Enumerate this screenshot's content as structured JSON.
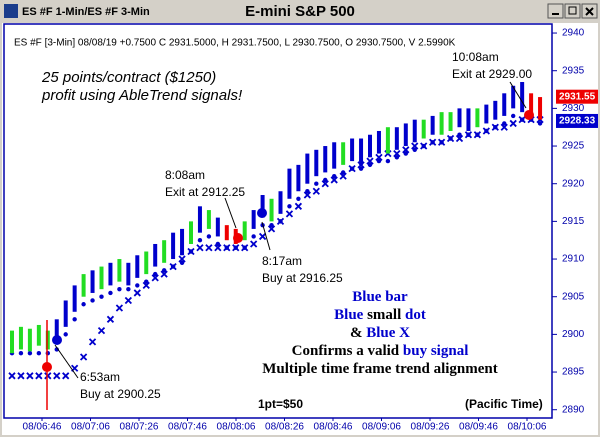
{
  "window": {
    "tab": "ES #F 1-Min/ES #F 3-Min",
    "title": "E-mini S&P 500"
  },
  "chart_data": {
    "type": "bar",
    "info": "ES #F [3-Min] 08/08/19 +0.7500 C 2931.5000, H 2931.7500, L 2930.7500, O 2930.7500, V 2.5990K",
    "categories": [
      "08/06:46",
      "08/07:06",
      "08/07:26",
      "08/07:46",
      "08/08:06",
      "08/08:26",
      "08/08:46",
      "08/09:06",
      "08/09:26",
      "08/09:46",
      "08/10:06"
    ],
    "ylim": [
      2888.9,
      2941.2
    ],
    "yticks": [
      2890,
      2895,
      2900,
      2905,
      2910,
      2915,
      2920,
      2925,
      2930,
      2935,
      2940
    ],
    "bars": {
      "high": [
        2900.5,
        2901,
        2900.75,
        2901.25,
        2900.5,
        2902,
        2904.5,
        2906.5,
        2908,
        2908.5,
        2909,
        2909.5,
        2910,
        2909.5,
        2910.5,
        2911,
        2912,
        2912.5,
        2913.5,
        2914,
        2915,
        2917,
        2916.5,
        2915.5,
        2914.5,
        2914,
        2915,
        2916.5,
        2918.5,
        2918,
        2919,
        2922,
        2922.5,
        2924,
        2924.5,
        2925,
        2925.5,
        2925.5,
        2926,
        2926,
        2926.5,
        2927,
        2927.5,
        2927.5,
        2928,
        2928.5,
        2928.5,
        2929,
        2929.5,
        2929.5,
        2930,
        2930,
        2930,
        2930.5,
        2931,
        2932,
        2933,
        2933.5,
        2932,
        2931.5
      ],
      "low": [
        2897.5,
        2898,
        2897.75,
        2898.5,
        2898,
        2899,
        2901,
        2903,
        2905,
        2905.5,
        2906,
        2906.5,
        2907,
        2906.5,
        2907.5,
        2908,
        2909,
        2909.5,
        2910,
        2910.5,
        2912,
        2913.5,
        2914,
        2913,
        2912.5,
        2912,
        2912.5,
        2914,
        2915.5,
        2915,
        2916,
        2918,
        2919,
        2920,
        2921,
        2921.5,
        2922,
        2922.5,
        2923,
        2922.5,
        2923.5,
        2924,
        2924,
        2924.5,
        2925,
        2925.5,
        2926,
        2926.5,
        2926.5,
        2927,
        2927.5,
        2927,
        2927.5,
        2928,
        2928.5,
        2929,
        2930,
        2929.5,
        2929,
        2928.5
      ],
      "colors": [
        "#22dd22",
        "#22dd22",
        "#22dd22",
        "#22dd22",
        "#22dd22",
        "#0000cc",
        "#0000cc",
        "#0000cc",
        "#22dd22",
        "#0000cc",
        "#22dd22",
        "#0000cc",
        "#22dd22",
        "#0000cc",
        "#0000cc",
        "#22dd22",
        "#0000cc",
        "#22dd22",
        "#0000cc",
        "#0000cc",
        "#22dd22",
        "#0000cc",
        "#22dd22",
        "#0000cc",
        "#ee0000",
        "#ee0000",
        "#22dd22",
        "#0000cc",
        "#0000cc",
        "#22dd22",
        "#0000cc",
        "#0000cc",
        "#0000cc",
        "#0000cc",
        "#0000cc",
        "#0000cc",
        "#0000cc",
        "#22dd22",
        "#0000cc",
        "#0000cc",
        "#0000cc",
        "#0000cc",
        "#22dd22",
        "#0000cc",
        "#0000cc",
        "#0000cc",
        "#22dd22",
        "#0000cc",
        "#22dd22",
        "#22dd22",
        "#0000cc",
        "#0000cc",
        "#22dd22",
        "#0000cc",
        "#0000cc",
        "#0000cc",
        "#0000cc",
        "#0000cc",
        "#ee0000",
        "#ee0000"
      ]
    },
    "dots": {
      "color": "#0000cc",
      "values": [
        2897.5,
        2897.5,
        2897.5,
        2897.5,
        2897.5,
        2898,
        2900,
        2902,
        2904,
        2904.5,
        2905,
        2905.5,
        2906,
        2906,
        2906.5,
        2907,
        2908,
        2908.5,
        2909,
        2909.5,
        2911,
        2912.5,
        2913,
        2912,
        2911.5,
        2911.5,
        2911.5,
        2913,
        2914.5,
        2914.5,
        2915,
        2917,
        2918,
        2919,
        2920,
        2920.5,
        2921,
        2921.5,
        2922,
        2922,
        2922.5,
        2923,
        2923,
        2923.5,
        2924,
        2924.5,
        2925,
        2925.5,
        2925.5,
        2926,
        2926.5,
        2926.5,
        2926.5,
        2927,
        2927.5,
        2928,
        2929,
        2928.5,
        2928.5,
        2928
      ]
    },
    "crosses": {
      "color": "#0000cc",
      "values": [
        2894.5,
        2894.5,
        2894.5,
        2894.5,
        2894.5,
        2894.5,
        2894.5,
        2895.5,
        2897,
        2899,
        2900.5,
        2902,
        2903.5,
        2904.5,
        2905.5,
        2906.5,
        2907.5,
        2908,
        2909,
        2910,
        2911,
        2911.5,
        2911.5,
        2911.5,
        2911.5,
        2911.5,
        2911.5,
        2912,
        2913,
        2914,
        2915,
        2916,
        2917,
        2918.5,
        2919,
        2920,
        2920.5,
        2921,
        2922,
        2922.5,
        2923,
        2923.5,
        2924,
        2924,
        2924.5,
        2925,
        2925,
        2925.5,
        2925.5,
        2926,
        2926,
        2926.5,
        2926.5,
        2927,
        2927.5,
        2927.5,
        2928,
        2928.5,
        2928.5,
        2928.5
      ]
    },
    "price_tags": [
      {
        "value": 2931.55,
        "color": "#ee0000"
      },
      {
        "value": 2928.33,
        "color": "#0000cc"
      }
    ],
    "headline": [
      "25 points/contract ($1250)",
      "profit using AbleTrend signals!"
    ],
    "annotations": [
      {
        "time": "6:53am",
        "text": "Buy at 2900.25"
      },
      {
        "time": "8:08am",
        "text": "Exit at 2912.25"
      },
      {
        "time": "8:17am",
        "text": "Buy at 2916.25"
      },
      {
        "time": "10:08am",
        "text": "Exit at 2929.00"
      }
    ],
    "notes": [
      {
        "parts": [
          "Blue bar"
        ],
        "colors": [
          "#0000cc"
        ]
      },
      {
        "parts": [
          "Blue ",
          "small ",
          "dot"
        ],
        "colors": [
          "#0000cc",
          "#000000",
          "#0000cc"
        ]
      },
      {
        "parts": [
          "& ",
          "Blue X"
        ],
        "colors": [
          "#000000",
          "#0000cc"
        ]
      },
      {
        "parts": [
          "Confirms a valid ",
          "buy signal"
        ],
        "colors": [
          "#000000",
          "#0000cc"
        ]
      },
      {
        "parts": [
          "Multiple time frame trend alignment"
        ],
        "colors": [
          "#000000"
        ]
      }
    ],
    "scale_note": "1pt=$50",
    "timezone": "(Pacific Time)"
  }
}
